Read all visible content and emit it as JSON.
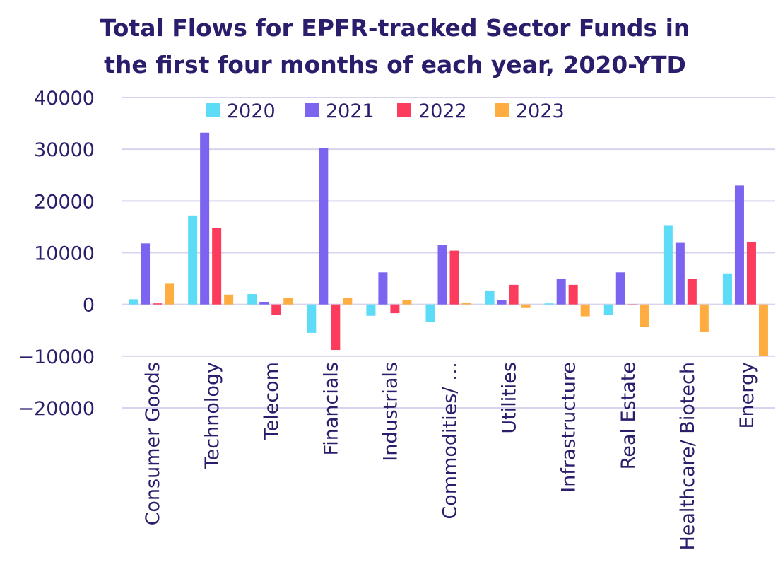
{
  "chart_data": {
    "type": "bar",
    "title": "Total Flows for EPFR-tracked Sector Funds in",
    "title_line2": "the first four months of each year, 2020-YTD",
    "xlabel": "",
    "ylabel": "",
    "ylim": [
      -20000,
      40000
    ],
    "yticks": [
      40000,
      30000,
      20000,
      10000,
      0,
      -10000,
      -20000
    ],
    "ytick_labels": [
      "40000",
      "30000",
      "20000",
      "10000",
      "0",
      "−10000",
      "−20000"
    ],
    "grid": true,
    "legend_position": "top",
    "categories": [
      "Consumer Goods",
      "Technology",
      "Telecom",
      "Financials",
      "Industrials",
      "Commodities/ …",
      "Utilities",
      "Infrastructure",
      "Real Estate",
      "Healthcare/ Biotech",
      "Energy"
    ],
    "series": [
      {
        "name": "2020",
        "color": "#5ddcf7",
        "values": [
          1000,
          17200,
          2000,
          -5500,
          -2200,
          -3400,
          2700,
          200,
          -2000,
          15200,
          6000
        ]
      },
      {
        "name": "2021",
        "color": "#7c63f0",
        "values": [
          11800,
          33200,
          500,
          30200,
          6200,
          11500,
          900,
          4900,
          6200,
          11900,
          23000
        ]
      },
      {
        "name": "2022",
        "color": "#fb3c5c",
        "values": [
          200,
          14800,
          -2000,
          -8800,
          -1700,
          10400,
          3800,
          3800,
          0,
          4900,
          12100
        ]
      },
      {
        "name": "2023",
        "color": "#ffad41",
        "values": [
          4000,
          1900,
          1300,
          1200,
          800,
          300,
          -700,
          -2300,
          -4300,
          -5300,
          -10000
        ]
      }
    ]
  }
}
